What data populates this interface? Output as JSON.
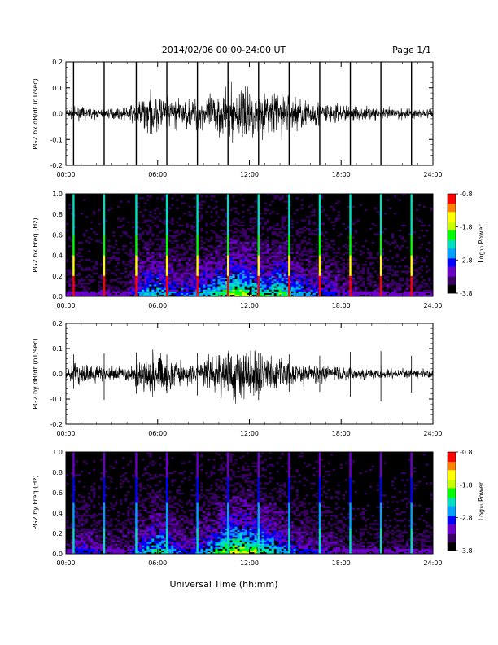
{
  "header": {
    "title": "2014/02/06  00:00-24:00 UT",
    "page_label": "Page 1/1"
  },
  "xlabel": "Universal Time (hh:mm)",
  "colors": {
    "axis": "#000000",
    "trace": "#000000",
    "spectrogram_background": "#000000",
    "colormap": [
      "#000000",
      "#3a0064",
      "#6a00c8",
      "#0000ff",
      "#00a0ff",
      "#00e0c0",
      "#00ff00",
      "#c8ff00",
      "#ffff00",
      "#ff8000",
      "#ff0000"
    ]
  },
  "chart_data": [
    {
      "type": "line",
      "ylabel": "PG2 bx dB/dt (nT/sec)",
      "xlim": [
        0,
        24
      ],
      "ylim": [
        -0.2,
        0.2
      ],
      "xticks": [
        "00:00",
        "06:00",
        "12:00",
        "18:00",
        "24:00"
      ],
      "yticks": [
        "-0.2",
        "-0.1",
        "0.0",
        "0.1",
        "0.2"
      ],
      "spikes_hours": [
        0.5,
        2.5,
        4.6,
        6.6,
        8.6,
        10.6,
        12.6,
        14.6,
        16.6,
        18.6,
        20.6,
        22.6
      ],
      "activity_envelope": {
        "hours": [
          0,
          1,
          2,
          3,
          4,
          5,
          6,
          7,
          8,
          9,
          10,
          11,
          12,
          13,
          14,
          15,
          16,
          17,
          18,
          19,
          20,
          21,
          22,
          23,
          24
        ],
        "amplitude": [
          0.01,
          0.012,
          0.01,
          0.01,
          0.012,
          0.035,
          0.04,
          0.03,
          0.028,
          0.035,
          0.045,
          0.055,
          0.05,
          0.04,
          0.05,
          0.035,
          0.03,
          0.025,
          0.018,
          0.015,
          0.012,
          0.012,
          0.012,
          0.01,
          0.01
        ]
      }
    },
    {
      "type": "heatmap",
      "ylabel": "PG2 bx Freq (Hz)",
      "xlim": [
        0,
        24
      ],
      "ylim": [
        0.0,
        1.0
      ],
      "xticks": [
        "00:00",
        "06:00",
        "12:00",
        "18:00",
        "24:00"
      ],
      "yticks": [
        "0.0",
        "0.2",
        "0.4",
        "0.6",
        "0.8",
        "1.0"
      ],
      "colorbar": {
        "label": "Log₁₀ Power",
        "ticks": [
          "-0.8",
          "-1.8",
          "-2.8",
          "-3.8"
        ],
        "range": [
          -3.8,
          -0.8
        ]
      },
      "spikes_hours": [
        0.5,
        2.5,
        4.6,
        6.6,
        8.6,
        10.6,
        12.6,
        14.6,
        16.6,
        18.6,
        20.6,
        22.6
      ]
    },
    {
      "type": "line",
      "ylabel": "PG2 by dB/dt (nT/sec)",
      "xlim": [
        0,
        24
      ],
      "ylim": [
        -0.2,
        0.2
      ],
      "xticks": [
        "00:00",
        "06:00",
        "12:00",
        "18:00",
        "24:00"
      ],
      "yticks": [
        "-0.2",
        "-0.1",
        "0.0",
        "0.1",
        "0.2"
      ],
      "spikes_hours": [
        0.5,
        2.5,
        4.6,
        6.6,
        8.6,
        10.6,
        12.6,
        14.6,
        16.6,
        18.6,
        20.6,
        22.6
      ],
      "activity_envelope": {
        "hours": [
          0,
          1,
          2,
          3,
          4,
          5,
          6,
          7,
          8,
          9,
          10,
          11,
          12,
          13,
          14,
          15,
          16,
          17,
          18,
          19,
          20,
          21,
          22,
          23,
          24
        ],
        "amplitude": [
          0.01,
          0.025,
          0.018,
          0.015,
          0.015,
          0.03,
          0.045,
          0.03,
          0.02,
          0.03,
          0.045,
          0.06,
          0.055,
          0.045,
          0.035,
          0.025,
          0.02,
          0.018,
          0.015,
          0.012,
          0.01,
          0.01,
          0.012,
          0.01,
          0.01
        ]
      }
    },
    {
      "type": "heatmap",
      "ylabel": "PG2 by Freq (Hz)",
      "xlim": [
        0,
        24
      ],
      "ylim": [
        0.0,
        1.0
      ],
      "xticks": [
        "00:00",
        "06:00",
        "12:00",
        "18:00",
        "24:00"
      ],
      "yticks": [
        "0.0",
        "0.2",
        "0.4",
        "0.6",
        "0.8",
        "1.0"
      ],
      "colorbar": {
        "label": "Log₁₀ Power",
        "ticks": [
          "-0.8",
          "-1.8",
          "-2.8",
          "-3.8"
        ],
        "range": [
          -3.8,
          -0.8
        ]
      },
      "spikes_hours": [
        0.5,
        2.5,
        4.6,
        6.6,
        8.6,
        10.6,
        12.6,
        14.6,
        16.6,
        18.6,
        20.6,
        22.6
      ]
    }
  ]
}
